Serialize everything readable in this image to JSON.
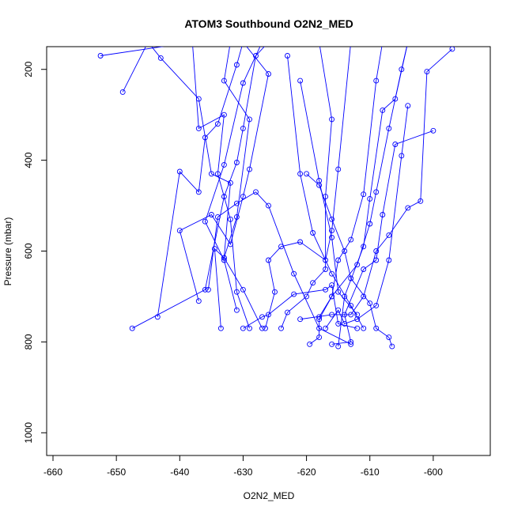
{
  "chart_data": {
    "type": "line",
    "title": "ATOM3 Southbound O2N2_MED",
    "xlabel": "O2N2_MED",
    "ylabel": "Pressure (mbar)",
    "xlim": [
      -661,
      -591
    ],
    "ylim": [
      1050,
      150
    ],
    "y_inverted": true,
    "x_ticks": [
      -660,
      -650,
      -640,
      -630,
      -620,
      -610,
      -600
    ],
    "y_ticks": [
      200,
      400,
      600,
      800,
      1000
    ],
    "series_color": "#0000ff",
    "marker": "open-circle",
    "grid": false,
    "legend": false,
    "series": [
      {
        "points": [
          [
            -652.5,
            170
          ],
          [
            -638,
            140
          ],
          [
            -637,
            330
          ],
          [
            -633,
            300
          ],
          [
            -634,
            430
          ],
          [
            -632,
            530
          ],
          [
            -631,
            690
          ],
          [
            -629,
            770
          ]
        ]
      },
      {
        "points": [
          [
            -649,
            250
          ],
          [
            -645,
            140
          ],
          [
            -643,
            175
          ],
          [
            -637,
            265
          ],
          [
            -635,
            430
          ],
          [
            -632,
            450
          ],
          [
            -633,
            615
          ],
          [
            -630,
            685
          ],
          [
            -627,
            770
          ]
        ]
      },
      {
        "points": [
          [
            -647.5,
            770
          ],
          [
            -636,
            685
          ],
          [
            -633,
            480
          ],
          [
            -631,
            405
          ],
          [
            -630,
            330
          ],
          [
            -628,
            170
          ],
          [
            -626,
            140
          ]
        ]
      },
      {
        "points": [
          [
            -643.5,
            745
          ],
          [
            -640,
            425
          ],
          [
            -637,
            470
          ],
          [
            -636,
            350
          ],
          [
            -634,
            320
          ],
          [
            -631,
            190
          ],
          [
            -630,
            140
          ]
        ]
      },
      {
        "points": [
          [
            -637,
            710
          ],
          [
            -640,
            555
          ],
          [
            -635,
            520
          ],
          [
            -632,
            585
          ],
          [
            -630,
            480
          ],
          [
            -629,
            420
          ],
          [
            -626,
            210
          ],
          [
            -630,
            140
          ]
        ]
      },
      {
        "points": [
          [
            -633.5,
            770
          ],
          [
            -634.5,
            595
          ],
          [
            -633,
            615
          ],
          [
            -631,
            525
          ],
          [
            -629,
            310
          ],
          [
            -633,
            225
          ],
          [
            -632,
            140
          ]
        ]
      },
      {
        "points": [
          [
            -635.5,
            685
          ],
          [
            -634,
            525
          ],
          [
            -631,
            495
          ],
          [
            -628,
            470
          ],
          [
            -626,
            500
          ],
          [
            -622,
            650
          ],
          [
            -618,
            770
          ],
          [
            -613,
            805
          ]
        ]
      },
      {
        "points": [
          [
            -631,
            730
          ],
          [
            -633,
            620
          ],
          [
            -636,
            535
          ],
          [
            -633,
            410
          ],
          [
            -630,
            230
          ],
          [
            -627,
            140
          ]
        ]
      },
      {
        "points": [
          [
            -630,
            770
          ],
          [
            -627,
            745
          ],
          [
            -626,
            740
          ],
          [
            -622,
            695
          ],
          [
            -617,
            685
          ],
          [
            -616,
            675
          ],
          [
            -615,
            760
          ],
          [
            -612,
            770
          ]
        ]
      },
      {
        "points": [
          [
            -626.5,
            770
          ],
          [
            -625,
            690
          ],
          [
            -626,
            620
          ],
          [
            -624,
            590
          ],
          [
            -621,
            580
          ],
          [
            -617,
            620
          ],
          [
            -616,
            555
          ],
          [
            -615,
            420
          ],
          [
            -613,
            140
          ]
        ]
      },
      {
        "points": [
          [
            -624,
            770
          ],
          [
            -623,
            735
          ],
          [
            -620,
            700
          ],
          [
            -619,
            670
          ],
          [
            -617,
            640
          ],
          [
            -617,
            480
          ],
          [
            -616,
            310
          ],
          [
            -618,
            140
          ]
        ]
      },
      {
        "points": [
          [
            -619.5,
            805
          ],
          [
            -618,
            790
          ],
          [
            -618,
            750
          ],
          [
            -616,
            700
          ],
          [
            -615,
            620
          ],
          [
            -613,
            575
          ],
          [
            -611,
            475
          ],
          [
            -609,
            225
          ],
          [
            -608,
            140
          ]
        ]
      },
      {
        "points": [
          [
            -618,
            745
          ],
          [
            -616,
            700
          ],
          [
            -612,
            630
          ],
          [
            -610,
            540
          ],
          [
            -609,
            470
          ],
          [
            -607,
            330
          ],
          [
            -605,
            200
          ],
          [
            -604,
            140
          ]
        ]
      },
      {
        "points": [
          [
            -617,
            770
          ],
          [
            -615,
            730
          ],
          [
            -614,
            760
          ],
          [
            -612,
            750
          ],
          [
            -609,
            720
          ],
          [
            -607,
            620
          ],
          [
            -605,
            390
          ],
          [
            -604,
            280
          ]
        ]
      },
      {
        "points": [
          [
            -616,
            805
          ],
          [
            -613,
            800
          ],
          [
            -614,
            740
          ],
          [
            -611,
            640
          ],
          [
            -609,
            620
          ],
          [
            -608,
            520
          ],
          [
            -606,
            365
          ],
          [
            -600,
            335
          ]
        ]
      },
      {
        "points": [
          [
            -615,
            810
          ],
          [
            -614,
            700
          ],
          [
            -611,
            590
          ],
          [
            -610,
            485
          ],
          [
            -608,
            290
          ],
          [
            -606,
            265
          ],
          [
            -604,
            140
          ]
        ]
      },
      {
        "points": [
          [
            -621,
            750
          ],
          [
            -616,
            740
          ],
          [
            -613,
            740
          ],
          [
            -611,
            700
          ],
          [
            -609,
            600
          ],
          [
            -607,
            565
          ],
          [
            -604,
            505
          ],
          [
            -602,
            490
          ],
          [
            -601,
            205
          ],
          [
            -597,
            155
          ]
        ]
      },
      {
        "points": [
          [
            -620,
            430
          ],
          [
            -618,
            455
          ],
          [
            -616,
            530
          ],
          [
            -614,
            600
          ],
          [
            -613,
            660
          ],
          [
            -610,
            715
          ],
          [
            -609,
            770
          ],
          [
            -607,
            790
          ],
          [
            -606.5,
            810
          ]
        ]
      },
      {
        "points": [
          [
            -623,
            170
          ],
          [
            -621,
            430
          ],
          [
            -619,
            560
          ],
          [
            -616,
            650
          ],
          [
            -613,
            720
          ],
          [
            -611,
            770
          ]
        ]
      },
      {
        "points": [
          [
            -621,
            225
          ],
          [
            -618,
            445
          ],
          [
            -616,
            570
          ],
          [
            -615,
            690
          ],
          [
            -612,
            740
          ]
        ]
      }
    ]
  }
}
